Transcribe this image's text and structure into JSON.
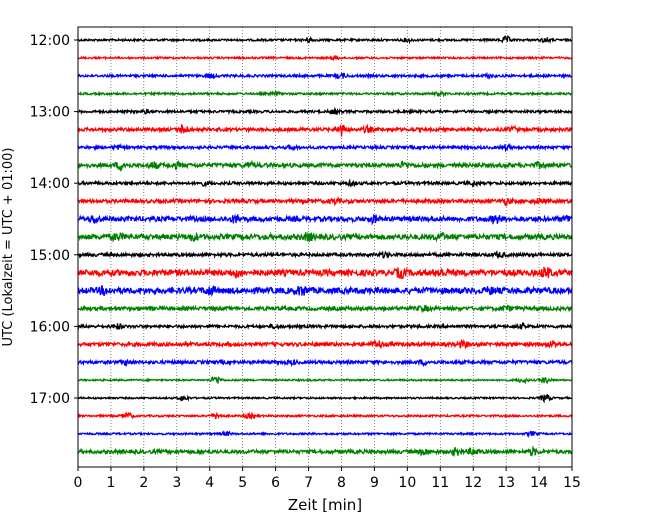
{
  "chart_data": {
    "type": "line",
    "title": "",
    "xlabel": "Zeit  [min]",
    "ylabel": "UTC (Lokalzeit = UTC + 01:00)",
    "xlim": [
      0,
      15
    ],
    "x_ticks": [
      "0",
      "1",
      "2",
      "3",
      "4",
      "5",
      "6",
      "7",
      "8",
      "9",
      "10",
      "11",
      "12",
      "13",
      "14",
      "15"
    ],
    "y_ticks": [
      "12:00",
      "13:00",
      "14:00",
      "15:00",
      "16:00",
      "17:00"
    ],
    "grid": "vertical dotted lines at each minute",
    "trace_start": "12:00",
    "trace_interval_min": 15,
    "trace_colors": [
      "#000000",
      "#ff0000",
      "#0000ff",
      "#008000"
    ],
    "series": [
      {
        "start": "12:00",
        "color": "#000000",
        "noise": 1.0,
        "bursts": [
          [
            7.0,
            2.0
          ],
          [
            10.0,
            1.5
          ],
          [
            13.0,
            3.0
          ],
          [
            14.2,
            2.0
          ]
        ]
      },
      {
        "start": "12:15",
        "color": "#ff0000",
        "noise": 0.9,
        "bursts": [
          [
            7.8,
            1.8
          ]
        ]
      },
      {
        "start": "12:30",
        "color": "#0000ff",
        "noise": 1.2,
        "bursts": [
          [
            4.0,
            1.8
          ],
          [
            8.0,
            2.0
          ],
          [
            12.5,
            1.6
          ]
        ]
      },
      {
        "start": "12:45",
        "color": "#008000",
        "noise": 1.0,
        "bursts": [
          [
            6.0,
            1.5
          ],
          [
            11.0,
            1.5
          ]
        ]
      },
      {
        "start": "13:00",
        "color": "#000000",
        "noise": 1.2,
        "bursts": [
          [
            2.0,
            1.5
          ],
          [
            7.8,
            1.8
          ]
        ]
      },
      {
        "start": "13:15",
        "color": "#ff0000",
        "noise": 1.6,
        "bursts": [
          [
            3.2,
            3.8
          ],
          [
            8.0,
            5.5
          ],
          [
            8.8,
            2.5
          ],
          [
            13.2,
            2.0
          ]
        ]
      },
      {
        "start": "13:30",
        "color": "#0000ff",
        "noise": 1.4,
        "bursts": [
          [
            1.2,
            1.5
          ],
          [
            6.5,
            1.5
          ],
          [
            13.0,
            2.0
          ]
        ]
      },
      {
        "start": "13:45",
        "color": "#008000",
        "noise": 2.0,
        "bursts": [
          [
            1.3,
            3.5
          ],
          [
            2.3,
            2.5
          ],
          [
            3.0,
            2.0
          ],
          [
            5.2,
            2.0
          ],
          [
            9.9,
            2.5
          ],
          [
            14.0,
            2.0
          ]
        ]
      },
      {
        "start": "14:00",
        "color": "#000000",
        "noise": 1.4,
        "bursts": [
          [
            3.8,
            1.5
          ],
          [
            8.3,
            1.5
          ],
          [
            12.0,
            1.5
          ]
        ]
      },
      {
        "start": "14:15",
        "color": "#ff0000",
        "noise": 1.8,
        "bursts": [
          [
            7.8,
            2.0
          ],
          [
            13.0,
            2.5
          ],
          [
            14.0,
            2.0
          ]
        ]
      },
      {
        "start": "14:30",
        "color": "#0000ff",
        "noise": 2.4,
        "bursts": [
          [
            0.5,
            2.5
          ],
          [
            4.8,
            3.0
          ],
          [
            9.0,
            2.5
          ],
          [
            12.7,
            3.0
          ],
          [
            14.9,
            3.0
          ]
        ]
      },
      {
        "start": "14:45",
        "color": "#008000",
        "noise": 2.6,
        "bursts": [
          [
            1.2,
            2.5
          ],
          [
            3.5,
            2.5
          ],
          [
            7.0,
            3.0
          ],
          [
            11.0,
            2.5
          ]
        ]
      },
      {
        "start": "15:00",
        "color": "#000000",
        "noise": 1.6,
        "bursts": [
          [
            9.3,
            2.0
          ],
          [
            12.8,
            2.0
          ]
        ]
      },
      {
        "start": "15:15",
        "color": "#ff0000",
        "noise": 3.0,
        "bursts": [
          [
            4.8,
            2.5
          ],
          [
            9.8,
            3.5
          ],
          [
            11.0,
            3.0
          ],
          [
            14.2,
            4.0
          ]
        ]
      },
      {
        "start": "15:30",
        "color": "#0000ff",
        "noise": 3.0,
        "bursts": [
          [
            0.8,
            2.5
          ],
          [
            4.0,
            3.0
          ],
          [
            6.8,
            3.5
          ],
          [
            12.5,
            2.0
          ]
        ]
      },
      {
        "start": "15:45",
        "color": "#008000",
        "noise": 1.8,
        "bursts": [
          [
            10.5,
            2.0
          ],
          [
            13.0,
            1.8
          ]
        ]
      },
      {
        "start": "16:00",
        "color": "#000000",
        "noise": 1.4,
        "bursts": [
          [
            1.2,
            2.2
          ],
          [
            6.0,
            1.5
          ],
          [
            13.5,
            1.5
          ]
        ]
      },
      {
        "start": "16:15",
        "color": "#ff0000",
        "noise": 1.8,
        "bursts": [
          [
            9.1,
            3.2
          ],
          [
            11.7,
            2.5
          ],
          [
            14.4,
            2.0
          ]
        ]
      },
      {
        "start": "16:30",
        "color": "#0000ff",
        "noise": 1.6,
        "bursts": [
          [
            1.5,
            2.0
          ],
          [
            6.5,
            1.5
          ],
          [
            10.5,
            1.8
          ]
        ]
      },
      {
        "start": "16:45",
        "color": "#008000",
        "noise": 0.8,
        "bursts": [
          [
            4.2,
            4.0
          ],
          [
            13.5,
            2.0
          ],
          [
            14.2,
            2.5
          ]
        ]
      },
      {
        "start": "17:00",
        "color": "#000000",
        "noise": 0.8,
        "bursts": [
          [
            3.2,
            2.5
          ],
          [
            14.2,
            3.5
          ]
        ]
      },
      {
        "start": "17:15",
        "color": "#ff0000",
        "noise": 0.9,
        "bursts": [
          [
            1.5,
            3.0
          ],
          [
            4.2,
            2.5
          ],
          [
            5.2,
            2.0
          ]
        ]
      },
      {
        "start": "17:30",
        "color": "#0000ff",
        "noise": 0.9,
        "bursts": [
          [
            4.5,
            1.8
          ],
          [
            13.8,
            1.8
          ]
        ]
      },
      {
        "start": "17:45",
        "color": "#008000",
        "noise": 1.8,
        "bursts": [
          [
            10.5,
            2.5
          ],
          [
            11.5,
            3.0
          ],
          [
            12.0,
            2.8
          ],
          [
            13.8,
            2.8
          ]
        ]
      }
    ]
  }
}
